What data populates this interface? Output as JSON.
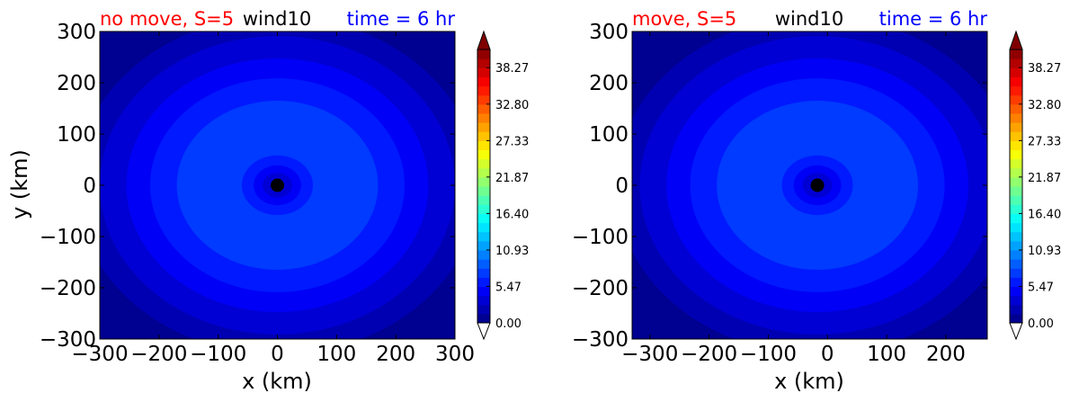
{
  "chart_data": [
    {
      "type": "heatmap",
      "title_left": "no move, S=5",
      "title_center": "wind10",
      "title_right": "time = 6 hr",
      "xlabel": "x (km)",
      "ylabel": "y (km)",
      "xlim": [
        -300,
        300
      ],
      "ylim": [
        -300,
        300
      ],
      "xticks": [
        "−300",
        "−200",
        "−100",
        "0",
        "100",
        "200",
        "300"
      ],
      "xtick_values": [
        -300,
        -200,
        -100,
        0,
        100,
        200,
        300
      ],
      "yticks": [
        "300",
        "200",
        "100",
        "0",
        "−100",
        "−200",
        "−300"
      ],
      "ytick_values": [
        300,
        200,
        100,
        0,
        -100,
        -200,
        -300
      ],
      "center": [
        0,
        0
      ],
      "contour_radii_km": [
        340,
        300,
        255,
        215,
        170,
        60,
        40,
        25
      ],
      "contour_levels": [
        1,
        2,
        3,
        4,
        5,
        4,
        3,
        2
      ],
      "colorbar_ticks": [
        "38.27",
        "32.80",
        "27.33",
        "21.87",
        "16.40",
        "10.93",
        "5.47",
        "0.00"
      ],
      "colorbar_min": 0,
      "colorbar_max": 41
    },
    {
      "type": "heatmap",
      "title_left": "move, S=5",
      "title_center": "wind10",
      "title_right": "time = 6 hr",
      "xlabel": "x (km)",
      "ylabel": "",
      "xlim": [
        -330,
        270
      ],
      "ylim": [
        -300,
        300
      ],
      "xticks": [
        "−300",
        "−200",
        "−100",
        "0",
        "100",
        "200"
      ],
      "xtick_values": [
        -300,
        -200,
        -100,
        0,
        100,
        200
      ],
      "yticks": [
        "300",
        "200",
        "100",
        "0",
        "−100",
        "−200",
        "−300"
      ],
      "ytick_values": [
        300,
        200,
        100,
        0,
        -100,
        -200,
        -300
      ],
      "center": [
        -17,
        0
      ],
      "contour_radii_km": [
        340,
        300,
        255,
        215,
        170,
        60,
        40,
        25
      ],
      "contour_levels": [
        1,
        2,
        3,
        4,
        5,
        4,
        3,
        2
      ],
      "colorbar_ticks": [
        "38.27",
        "32.80",
        "27.33",
        "21.87",
        "16.40",
        "10.93",
        "5.47",
        "0.00"
      ],
      "colorbar_min": 0,
      "colorbar_max": 41
    }
  ],
  "colors": {
    "title_left": "#ff0000",
    "title_center": "#000000",
    "title_right": "#0000ff",
    "eye": "#000000"
  },
  "colormap": "jet"
}
